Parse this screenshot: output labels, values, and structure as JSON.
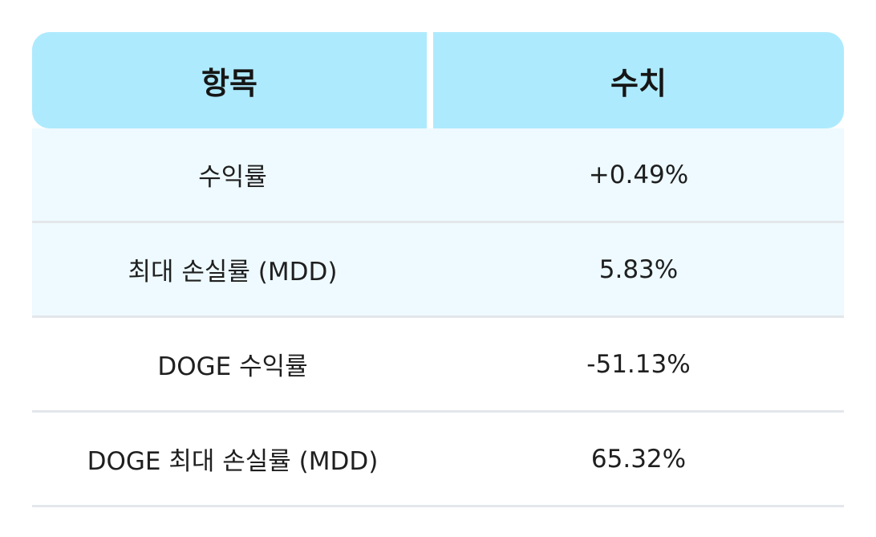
{
  "table": {
    "headers": [
      "항목",
      "수치"
    ],
    "rows": [
      {
        "label": "수익률",
        "value": "+0.49%"
      },
      {
        "label": "최대 손실률 (MDD)",
        "value": "5.83%"
      },
      {
        "label": "DOGE 수익률",
        "value": "-51.13%"
      },
      {
        "label": "DOGE 최대 손실률 (MDD)",
        "value": "65.32%"
      }
    ]
  },
  "colors": {
    "header_bg": "#aeeafd",
    "tinted_row_bg": "#eefaff",
    "row_divider": "#e3e7eb"
  }
}
